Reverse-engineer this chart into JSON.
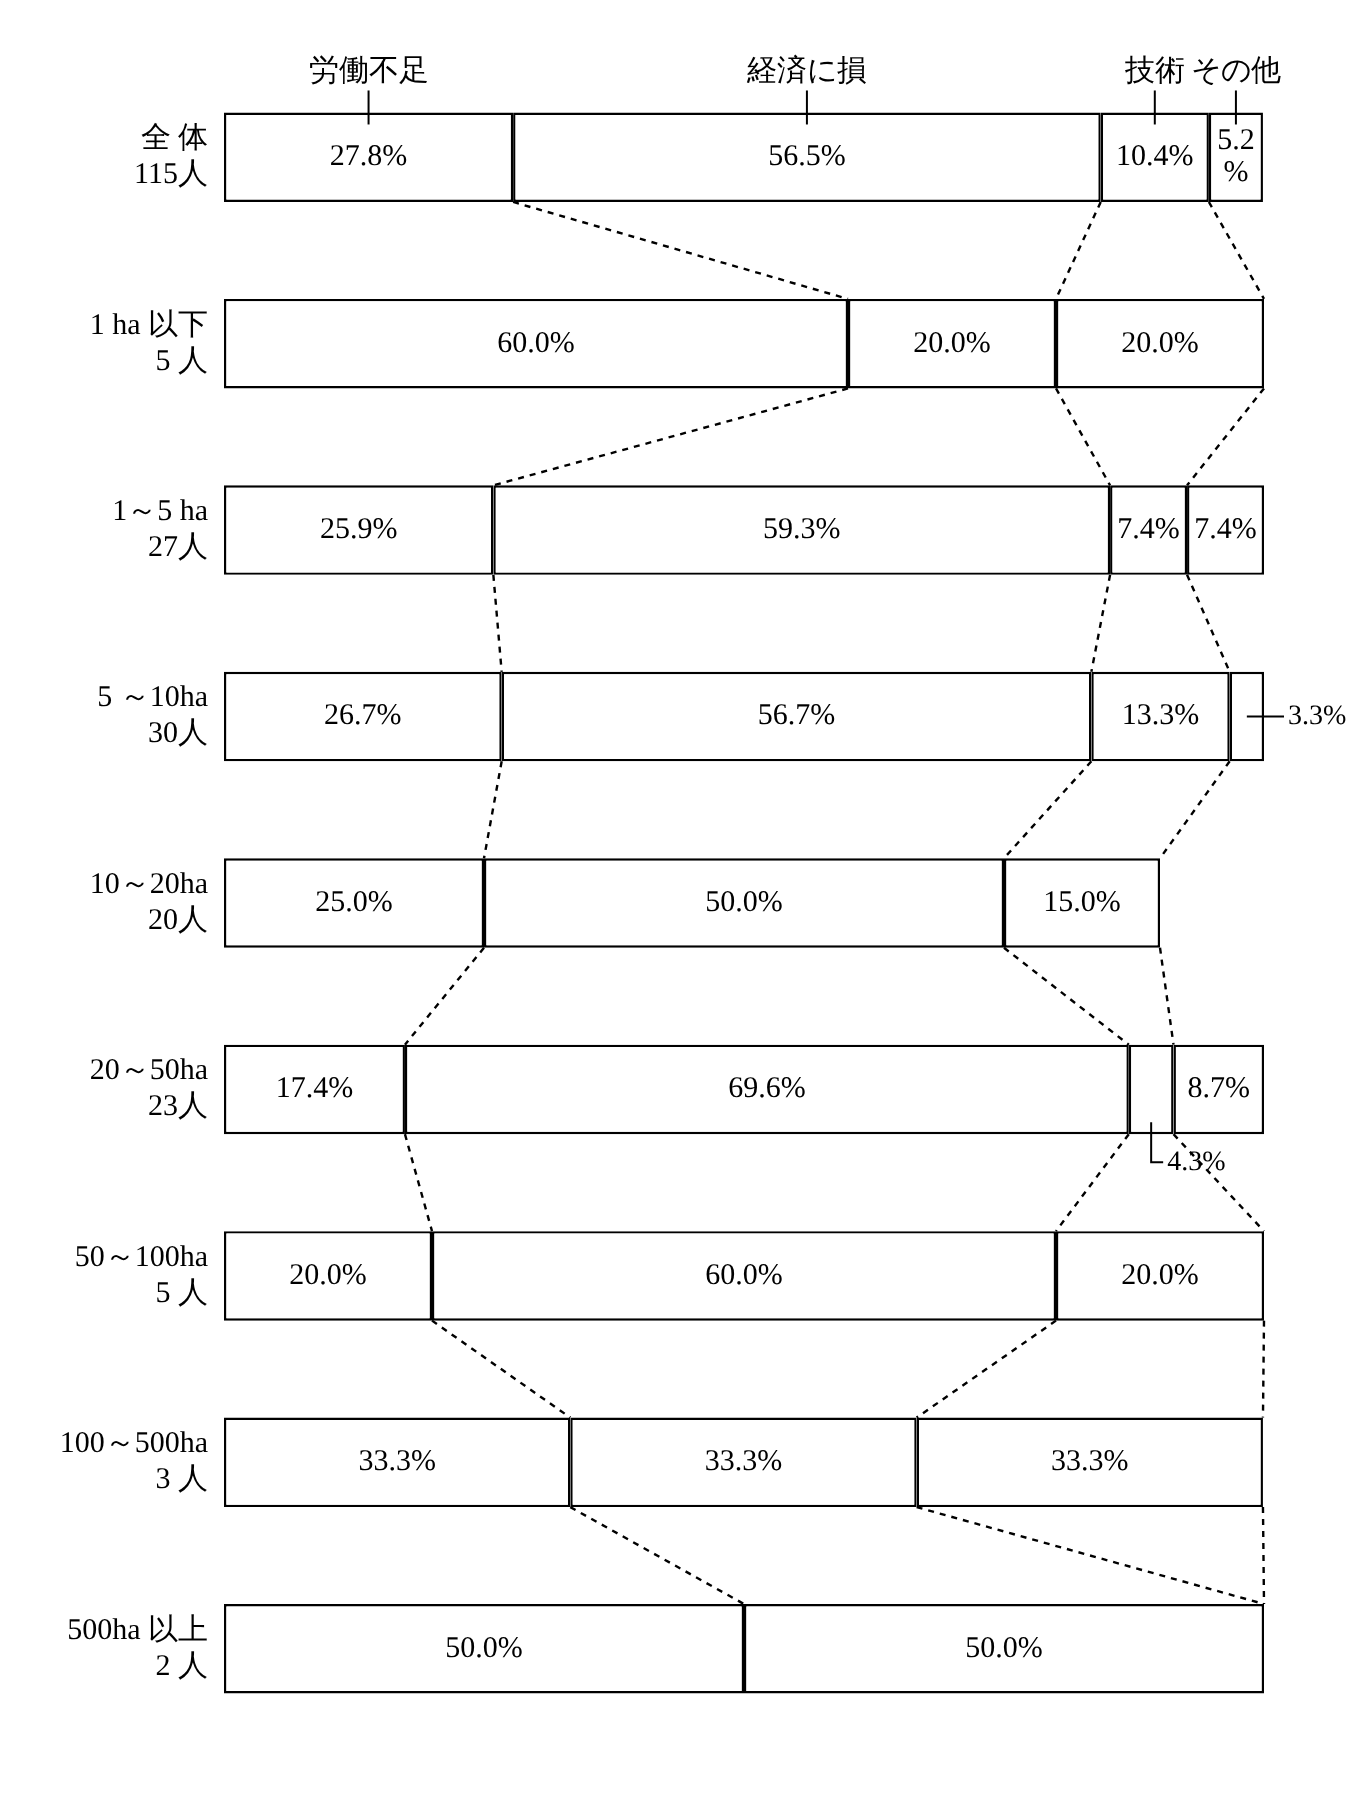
{
  "chart_data": {
    "type": "bar",
    "orientation": "horizontal",
    "stacked": true,
    "grid": false,
    "categories": [
      "全 体\n115人",
      "1 ha 以下\n5 人",
      "1～5 ha\n27人",
      "5 ～10ha\n30人",
      "10～20ha\n20人",
      "20～50ha\n23人",
      "50～100ha\n5 人",
      "100～500ha\n3 人",
      "500ha 以上\n2 人"
    ],
    "series": [
      {
        "name": "労働不足",
        "color": "#ffffff",
        "values": [
          27.8,
          60.0,
          25.9,
          26.7,
          25.0,
          17.4,
          20.0,
          33.3,
          50.0
        ],
        "value_labels": [
          "27.8%",
          "60.0%",
          "25.9%",
          "26.7%",
          "25.0%",
          "17.4%",
          "20.0%",
          "33.3%",
          "50.0%"
        ]
      },
      {
        "name": "経済に損",
        "color": "#ffffff",
        "values": [
          56.5,
          20.0,
          59.3,
          56.7,
          50.0,
          69.6,
          60.0,
          33.3,
          50.0
        ],
        "value_labels": [
          "56.5%",
          "20.0%",
          "59.3%",
          "56.7%",
          "50.0%",
          "69.6%",
          "60.0%",
          "33.3%",
          "50.0%"
        ]
      },
      {
        "name": "技術",
        "color": "#ffffff",
        "values": [
          10.4,
          20.0,
          7.4,
          13.3,
          15.0,
          4.3,
          20.0,
          33.3,
          null
        ],
        "value_labels": [
          "10.4%",
          "20.0%",
          "7.4%",
          "13.3%",
          "15.0%",
          "4.3%",
          "20.0%",
          "33.3%",
          null
        ]
      },
      {
        "name": "その他",
        "color": "#ffffff",
        "values": [
          5.2,
          null,
          7.4,
          3.3,
          null,
          8.7,
          null,
          null,
          null
        ],
        "value_labels": [
          "5.2\n%",
          null,
          "7.4%",
          "3.3%",
          null,
          "8.7%",
          null,
          null,
          null
        ]
      }
    ]
  }
}
